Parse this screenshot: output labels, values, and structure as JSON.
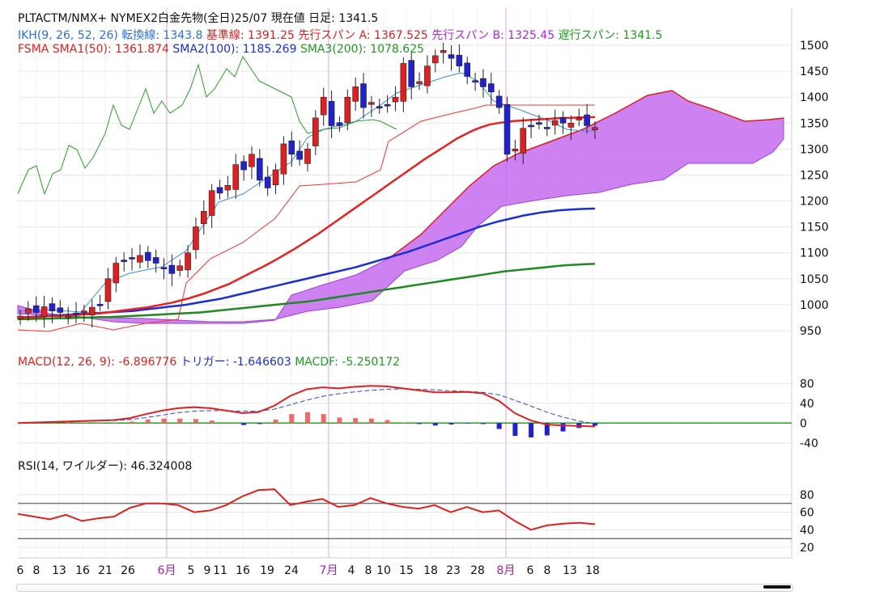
{
  "header": {
    "line1": "PLTACTM/NMX+ NYMEX2白金先物(全日)25/07  現在値 日足: 1341.5",
    "ikh_prefix": "IKH(9, 26, 52, 26) 転換線: 1343.8",
    "ikh_kijun": "基準線: 1391.25",
    "ikh_spanA": "先行スパン A: 1367.525",
    "ikh_spanB": "先行スパン B: 1325.45",
    "ikh_chikou": "遅行スパン: 1341.5",
    "fsma_sma1": "FSMA SMA1(50): 1361.874",
    "fsma_sma2": "SMA2(100): 1185.269",
    "fsma_sma3": "SMA3(200): 1078.625",
    "macd_label": "MACD(12, 26, 9): -6.896776",
    "macd_trigger": "トリガー: -1.646603",
    "macd_diff": "MACDF: -5.250172",
    "rsi_label": "RSI(14, ワイルダー): 46.324008"
  },
  "colors": {
    "up": "#e02020",
    "down": "#2222cc",
    "cloud": "#c56cf0",
    "kijun": "#ff3030",
    "tenkan": "#3a8ee6",
    "chikou": "#2aa02a",
    "sma1": "#e82020",
    "sma2": "#1a2ed8",
    "sma3": "#1f8a1f",
    "month_line": "#e6a3f0",
    "grid": "#e6e6e6"
  },
  "chart_data": [
    {
      "type": "candlestick",
      "panel": "price",
      "ylim": [
        925,
        1525
      ],
      "yticks": [
        950,
        1000,
        1050,
        1100,
        1150,
        1200,
        1250,
        1300,
        1350,
        1400,
        1450,
        1500
      ],
      "x_ticks": [
        "6",
        "8",
        "13",
        "16",
        "21",
        "26",
        "6月",
        "5",
        "9",
        "11",
        "16",
        "19",
        "24",
        "7月",
        "4",
        "8",
        "10",
        "15",
        "18",
        "23",
        "28",
        "8月",
        "6",
        "8",
        "13",
        "18"
      ],
      "month_markers": [
        "6月",
        "7月",
        "8月"
      ],
      "ohlc_close": [
        978,
        992,
        985,
        996,
        988,
        985,
        978,
        982,
        988,
        995,
        1000,
        1050,
        1080,
        1085,
        1090,
        1095,
        1085,
        1080,
        1070,
        1060,
        1075,
        1100,
        1150,
        1180,
        1220,
        1215,
        1230,
        1270,
        1260,
        1290,
        1240,
        1225,
        1260,
        1310,
        1290,
        1280,
        1300,
        1360,
        1400,
        1345,
        1345,
        1400,
        1420,
        1380,
        1390,
        1380,
        1385,
        1400,
        1465,
        1420,
        1430,
        1460,
        1480,
        1490,
        1475,
        1460,
        1440,
        1430,
        1420,
        1410,
        1380,
        1290,
        1300,
        1340,
        1345,
        1350,
        1340,
        1355,
        1350,
        1350,
        1360,
        1345,
        1341.5
      ],
      "sma1_50": [
        975,
        975,
        976,
        977,
        978,
        978,
        979,
        980,
        981,
        982,
        983,
        985,
        987,
        989,
        991,
        993,
        995,
        998,
        1001,
        1004,
        1008,
        1012,
        1017,
        1022,
        1028,
        1034,
        1040,
        1048,
        1056,
        1064,
        1072,
        1080,
        1089,
        1098,
        1107,
        1117,
        1127,
        1137,
        1148,
        1159,
        1170,
        1181,
        1192,
        1203,
        1214,
        1225,
        1236,
        1247,
        1258,
        1269,
        1280,
        1290,
        1300,
        1310,
        1320,
        1328,
        1336,
        1342,
        1347,
        1350,
        1352,
        1354,
        1355,
        1356,
        1357,
        1358,
        1359,
        1360,
        1360,
        1361,
        1361,
        1361.874
      ],
      "sma2_100": [
        975,
        976,
        977,
        978,
        979,
        980,
        981,
        982,
        983,
        984,
        985,
        986,
        987,
        988,
        990,
        992,
        994,
        996,
        998,
        1000,
        1003,
        1006,
        1009,
        1012,
        1016,
        1020,
        1024,
        1028,
        1032,
        1036,
        1040,
        1044,
        1048,
        1052,
        1056,
        1060,
        1064,
        1068,
        1072,
        1077,
        1082,
        1087,
        1092,
        1097,
        1102,
        1108,
        1114,
        1120,
        1126,
        1132,
        1138,
        1144,
        1150,
        1155,
        1160,
        1164,
        1168,
        1172,
        1175,
        1178,
        1180,
        1182,
        1183,
        1184,
        1185,
        1185.269
      ],
      "sma3_200": [
        972,
        972,
        973,
        973,
        974,
        974,
        975,
        975,
        976,
        976,
        977,
        978,
        979,
        980,
        981,
        982,
        983,
        984,
        985,
        987,
        989,
        991,
        993,
        995,
        997,
        999,
        1001,
        1003,
        1005,
        1007,
        1010,
        1013,
        1016,
        1019,
        1022,
        1025,
        1028,
        1031,
        1034,
        1037,
        1040,
        1043,
        1046,
        1049,
        1052,
        1055,
        1058,
        1061,
        1064,
        1066,
        1068,
        1070,
        1072,
        1074,
        1076,
        1077,
        1078,
        1078.625
      ]
    },
    {
      "type": "line",
      "panel": "macd",
      "ylim": [
        -60,
        100
      ],
      "yticks": [
        -40,
        0,
        40,
        80
      ],
      "series": [
        {
          "name": "MACD",
          "values": [
            0,
            1,
            2,
            3,
            4,
            5,
            6,
            10,
            18,
            25,
            30,
            32,
            30,
            25,
            20,
            22,
            35,
            55,
            68,
            72,
            70,
            73,
            75,
            74,
            70,
            66,
            62,
            62,
            63,
            60,
            45,
            20,
            5,
            -3,
            -5,
            -6,
            -6.9
          ]
        },
        {
          "name": "トリガー",
          "values": [
            0,
            0,
            1,
            2,
            3,
            4,
            5,
            7,
            11,
            16,
            21,
            24,
            25,
            25,
            24,
            24,
            28,
            37,
            46,
            54,
            59,
            63,
            66,
            68,
            69,
            68,
            67,
            65,
            64,
            62,
            57,
            46,
            34,
            22,
            12,
            4,
            -1.6
          ]
        }
      ]
    },
    {
      "type": "line",
      "panel": "rsi",
      "ylim": [
        10,
        100
      ],
      "yticks": [
        20,
        40,
        60,
        80
      ],
      "series": [
        {
          "name": "RSI",
          "values": [
            58,
            55,
            52,
            57,
            50,
            53,
            55,
            65,
            70,
            70,
            68,
            60,
            62,
            68,
            78,
            85,
            86,
            68,
            72,
            75,
            66,
            68,
            76,
            70,
            66,
            64,
            68,
            60,
            66,
            60,
            62,
            50,
            40,
            45,
            47,
            48,
            46.324008
          ]
        }
      ]
    }
  ]
}
